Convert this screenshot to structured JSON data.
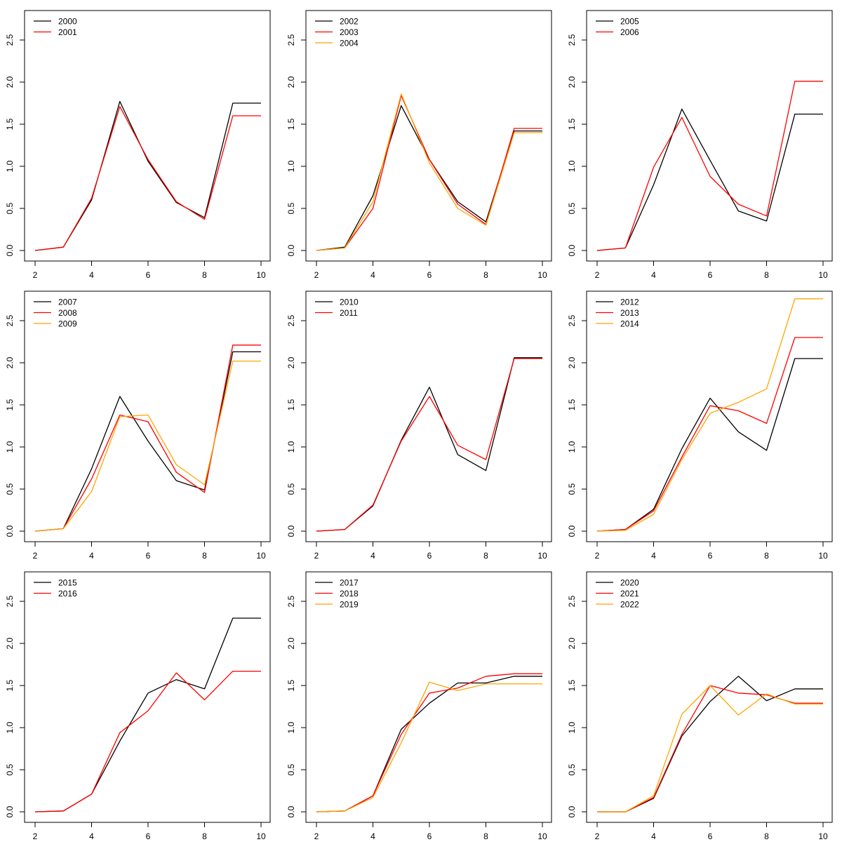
{
  "chart_data": [
    {
      "type": "line",
      "x": [
        2,
        3,
        4,
        5,
        6,
        7,
        8,
        9,
        10
      ],
      "xticks": [
        2,
        4,
        6,
        8,
        10
      ],
      "yticks": [
        0.0,
        0.5,
        1.0,
        1.5,
        2.0,
        2.5
      ],
      "ytick_labels": [
        "0.0",
        "0.5",
        "1.0",
        "1.5",
        "2.0",
        "2.5"
      ],
      "xlim": [
        2,
        10
      ],
      "ylim": [
        0,
        2.76
      ],
      "legend_position": "top-left",
      "series": [
        {
          "name": "2000",
          "color": "#000000",
          "values": [
            0.0,
            0.04,
            0.6,
            1.77,
            1.06,
            0.57,
            0.39,
            1.75,
            1.75
          ]
        },
        {
          "name": "2001",
          "color": "#ff0000",
          "values": [
            0.0,
            0.04,
            0.62,
            1.71,
            1.08,
            0.58,
            0.37,
            1.6,
            1.6
          ]
        }
      ]
    },
    {
      "type": "line",
      "x": [
        2,
        3,
        4,
        5,
        6,
        7,
        8,
        9,
        10
      ],
      "xticks": [
        2,
        4,
        6,
        8,
        10
      ],
      "yticks": [
        0.0,
        0.5,
        1.0,
        1.5,
        2.0,
        2.5
      ],
      "ytick_labels": [
        "0.0",
        "0.5",
        "1.0",
        "1.5",
        "2.0",
        "2.5"
      ],
      "xlim": [
        2,
        10
      ],
      "ylim": [
        0,
        2.76
      ],
      "legend_position": "top-left",
      "series": [
        {
          "name": "2002",
          "color": "#000000",
          "values": [
            0.0,
            0.04,
            0.65,
            1.72,
            1.08,
            0.58,
            0.34,
            1.42,
            1.42
          ]
        },
        {
          "name": "2003",
          "color": "#ff0000",
          "values": [
            0.0,
            0.03,
            0.5,
            1.84,
            1.08,
            0.55,
            0.31,
            1.45,
            1.45
          ]
        },
        {
          "name": "2004",
          "color": "#ffa500",
          "values": [
            0.0,
            0.03,
            0.58,
            1.86,
            1.04,
            0.5,
            0.3,
            1.4,
            1.4
          ]
        }
      ]
    },
    {
      "type": "line",
      "x": [
        2,
        3,
        4,
        5,
        6,
        7,
        8,
        9,
        10
      ],
      "xticks": [
        2,
        4,
        6,
        8,
        10
      ],
      "yticks": [
        0.0,
        0.5,
        1.0,
        1.5,
        2.0,
        2.5
      ],
      "ytick_labels": [
        "0.0",
        "0.5",
        "1.0",
        "1.5",
        "2.0",
        "2.5"
      ],
      "xlim": [
        2,
        10
      ],
      "ylim": [
        0,
        2.76
      ],
      "legend_position": "top-left",
      "series": [
        {
          "name": "2005",
          "color": "#000000",
          "values": [
            0.0,
            0.03,
            0.78,
            1.68,
            1.07,
            0.47,
            0.35,
            1.62,
            1.62
          ]
        },
        {
          "name": "2006",
          "color": "#ff0000",
          "values": [
            0.0,
            0.03,
            0.99,
            1.58,
            0.88,
            0.55,
            0.41,
            2.01,
            2.01
          ]
        }
      ]
    },
    {
      "type": "line",
      "x": [
        2,
        3,
        4,
        5,
        6,
        7,
        8,
        9,
        10
      ],
      "xticks": [
        2,
        4,
        6,
        8,
        10
      ],
      "yticks": [
        0.0,
        0.5,
        1.0,
        1.5,
        2.0,
        2.5
      ],
      "ytick_labels": [
        "0.0",
        "0.5",
        "1.0",
        "1.5",
        "2.0",
        "2.5"
      ],
      "xlim": [
        2,
        10
      ],
      "ylim": [
        0,
        2.76
      ],
      "legend_position": "top-left",
      "series": [
        {
          "name": "2007",
          "color": "#000000",
          "values": [
            0.0,
            0.03,
            0.74,
            1.6,
            1.07,
            0.6,
            0.49,
            2.13,
            2.13
          ]
        },
        {
          "name": "2008",
          "color": "#ff0000",
          "values": [
            0.0,
            0.03,
            0.62,
            1.38,
            1.3,
            0.7,
            0.46,
            2.21,
            2.21
          ]
        },
        {
          "name": "2009",
          "color": "#ffa500",
          "values": [
            0.0,
            0.03,
            0.47,
            1.36,
            1.38,
            0.79,
            0.55,
            2.02,
            2.02
          ]
        }
      ]
    },
    {
      "type": "line",
      "x": [
        2,
        3,
        4,
        5,
        6,
        7,
        8,
        9,
        10
      ],
      "xticks": [
        2,
        4,
        6,
        8,
        10
      ],
      "yticks": [
        0.0,
        0.5,
        1.0,
        1.5,
        2.0,
        2.5
      ],
      "ytick_labels": [
        "0.0",
        "0.5",
        "1.0",
        "1.5",
        "2.0",
        "2.5"
      ],
      "xlim": [
        2,
        10
      ],
      "ylim": [
        0,
        2.76
      ],
      "legend_position": "top-left",
      "series": [
        {
          "name": "2010",
          "color": "#000000",
          "values": [
            0.0,
            0.02,
            0.3,
            1.08,
            1.71,
            0.91,
            0.72,
            2.06,
            2.06
          ]
        },
        {
          "name": "2011",
          "color": "#ff0000",
          "values": [
            0.0,
            0.02,
            0.31,
            1.07,
            1.6,
            1.02,
            0.85,
            2.05,
            2.05
          ]
        }
      ]
    },
    {
      "type": "line",
      "x": [
        2,
        3,
        4,
        5,
        6,
        7,
        8,
        9,
        10
      ],
      "xticks": [
        2,
        4,
        6,
        8,
        10
      ],
      "yticks": [
        0.0,
        0.5,
        1.0,
        1.5,
        2.0,
        2.5
      ],
      "ytick_labels": [
        "0.0",
        "0.5",
        "1.0",
        "1.5",
        "2.0",
        "2.5"
      ],
      "xlim": [
        2,
        10
      ],
      "ylim": [
        0,
        2.76
      ],
      "legend_position": "top-left",
      "series": [
        {
          "name": "2012",
          "color": "#000000",
          "values": [
            0.0,
            0.02,
            0.26,
            0.98,
            1.58,
            1.18,
            0.96,
            2.05,
            2.05
          ]
        },
        {
          "name": "2013",
          "color": "#ff0000",
          "values": [
            0.0,
            0.02,
            0.24,
            0.88,
            1.49,
            1.43,
            1.28,
            2.3,
            2.3
          ]
        },
        {
          "name": "2014",
          "color": "#ffa500",
          "values": [
            0.0,
            0.01,
            0.2,
            0.85,
            1.4,
            1.53,
            1.69,
            2.76,
            2.76
          ]
        }
      ]
    },
    {
      "type": "line",
      "x": [
        2,
        3,
        4,
        5,
        6,
        7,
        8,
        9,
        10
      ],
      "xticks": [
        2,
        4,
        6,
        8,
        10
      ],
      "yticks": [
        0.0,
        0.5,
        1.0,
        1.5,
        2.0,
        2.5
      ],
      "ytick_labels": [
        "0.0",
        "0.5",
        "1.0",
        "1.5",
        "2.0",
        "2.5"
      ],
      "xlim": [
        2,
        10
      ],
      "ylim": [
        0,
        2.76
      ],
      "legend_position": "top-left",
      "series": [
        {
          "name": "2015",
          "color": "#000000",
          "values": [
            0.0,
            0.01,
            0.21,
            0.84,
            1.41,
            1.57,
            1.46,
            2.3,
            2.3
          ]
        },
        {
          "name": "2016",
          "color": "#ff0000",
          "values": [
            0.0,
            0.01,
            0.21,
            0.94,
            1.2,
            1.65,
            1.33,
            1.67,
            1.67
          ]
        }
      ]
    },
    {
      "type": "line",
      "x": [
        2,
        3,
        4,
        5,
        6,
        7,
        8,
        9,
        10
      ],
      "xticks": [
        2,
        4,
        6,
        8,
        10
      ],
      "yticks": [
        0.0,
        0.5,
        1.0,
        1.5,
        2.0,
        2.5
      ],
      "ytick_labels": [
        "0.0",
        "0.5",
        "1.0",
        "1.5",
        "2.0",
        "2.5"
      ],
      "xlim": [
        2,
        10
      ],
      "ylim": [
        0,
        2.76
      ],
      "legend_position": "top-left",
      "series": [
        {
          "name": "2017",
          "color": "#000000",
          "values": [
            0.0,
            0.01,
            0.19,
            0.98,
            1.29,
            1.53,
            1.53,
            1.61,
            1.61
          ]
        },
        {
          "name": "2018",
          "color": "#ff0000",
          "values": [
            0.0,
            0.01,
            0.19,
            0.92,
            1.41,
            1.47,
            1.61,
            1.64,
            1.64
          ]
        },
        {
          "name": "2019",
          "color": "#ffa500",
          "values": [
            0.0,
            0.01,
            0.17,
            0.82,
            1.54,
            1.44,
            1.52,
            1.52,
            1.52
          ]
        }
      ]
    },
    {
      "type": "line",
      "x": [
        2,
        3,
        4,
        5,
        6,
        7,
        8,
        9,
        10
      ],
      "xticks": [
        2,
        4,
        6,
        8,
        10
      ],
      "yticks": [
        0.0,
        0.5,
        1.0,
        1.5,
        2.0,
        2.5
      ],
      "ytick_labels": [
        "0.0",
        "0.5",
        "1.0",
        "1.5",
        "2.0",
        "2.5"
      ],
      "xlim": [
        2,
        10
      ],
      "ylim": [
        0,
        2.76
      ],
      "legend_position": "top-left",
      "series": [
        {
          "name": "2020",
          "color": "#000000",
          "values": [
            0.0,
            0.0,
            0.16,
            0.9,
            1.31,
            1.61,
            1.32,
            1.46,
            1.46
          ]
        },
        {
          "name": "2021",
          "color": "#ff0000",
          "values": [
            0.0,
            0.0,
            0.17,
            0.92,
            1.5,
            1.41,
            1.39,
            1.29,
            1.29
          ]
        },
        {
          "name": "2022",
          "color": "#ffa500",
          "values": [
            0.0,
            0.0,
            0.19,
            1.16,
            1.5,
            1.15,
            1.4,
            1.28,
            1.28
          ]
        }
      ]
    }
  ]
}
